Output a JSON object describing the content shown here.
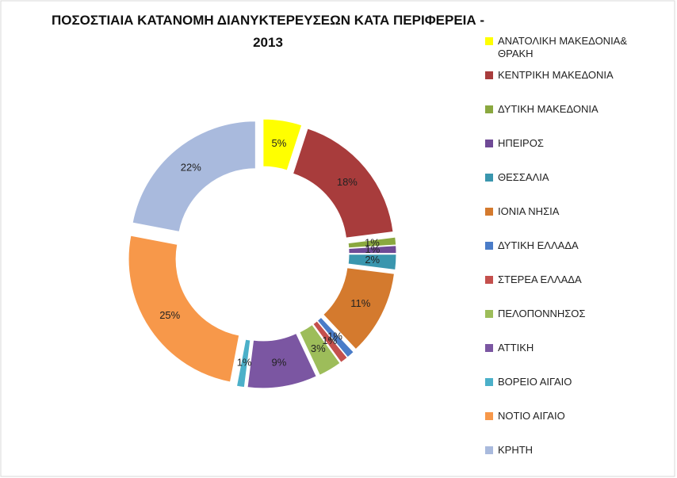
{
  "chart_data": {
    "type": "pie",
    "title": "ΠΟΣΟΣΤΙΑΙΑ ΚΑΤΑΝΟΜΗ ΔΙΑΝΥΚΤΕΡΕΥΣΕΩΝ  ΚΑΤΑ ΠΕΡΙΦΕΡΕΙΑ -\n2013",
    "categories": [
      "ΑΝΑΤΟΛΙΚΗ ΜΑΚΕΔΟΝΙΑ& ΘΡΑΚΗ",
      "ΚΕΝΤΡΙΚΗ ΜΑΚΕΔΟΝΙΑ",
      "ΔΥΤΙΚΗ ΜΑΚΕΔΟΝΙΑ",
      "ΗΠΕΙΡΟΣ",
      "ΘΕΣΣΑΛΙΑ",
      "ΙΟΝΙΑ ΝΗΣΙΑ",
      "ΔΥΤΙΚΗ ΕΛΛΑΔΑ",
      "ΣΤΕΡΕΑ ΕΛΛΑΔΑ",
      "ΠΕΛΟΠΟΝΝΗΣΟΣ",
      "ΑΤΤΙΚΗ",
      "ΒΟΡΕΙΟ ΑΙΓΑΙΟ",
      "ΝΟΤΙΟ ΑΙΓΑΙΟ",
      "ΚΡΗΤΗ"
    ],
    "values": [
      5,
      18,
      1,
      1,
      2,
      11,
      1,
      1,
      3,
      9,
      1,
      25,
      22
    ],
    "value_labels": [
      "5%",
      "18%",
      "1%",
      "1%",
      "2%",
      "11%",
      "1%",
      "1%",
      "3%",
      "9%",
      "1%",
      "25%",
      "22%"
    ],
    "colors": [
      "#ffff00",
      "#a83c3c",
      "#8aa83f",
      "#6f4a96",
      "#3a96ae",
      "#d47a2e",
      "#4a7cc8",
      "#c4504d",
      "#9dbd5a",
      "#7b56a2",
      "#4bb0c9",
      "#f7984a",
      "#a9badd"
    ],
    "donut": true,
    "exploded": true
  }
}
